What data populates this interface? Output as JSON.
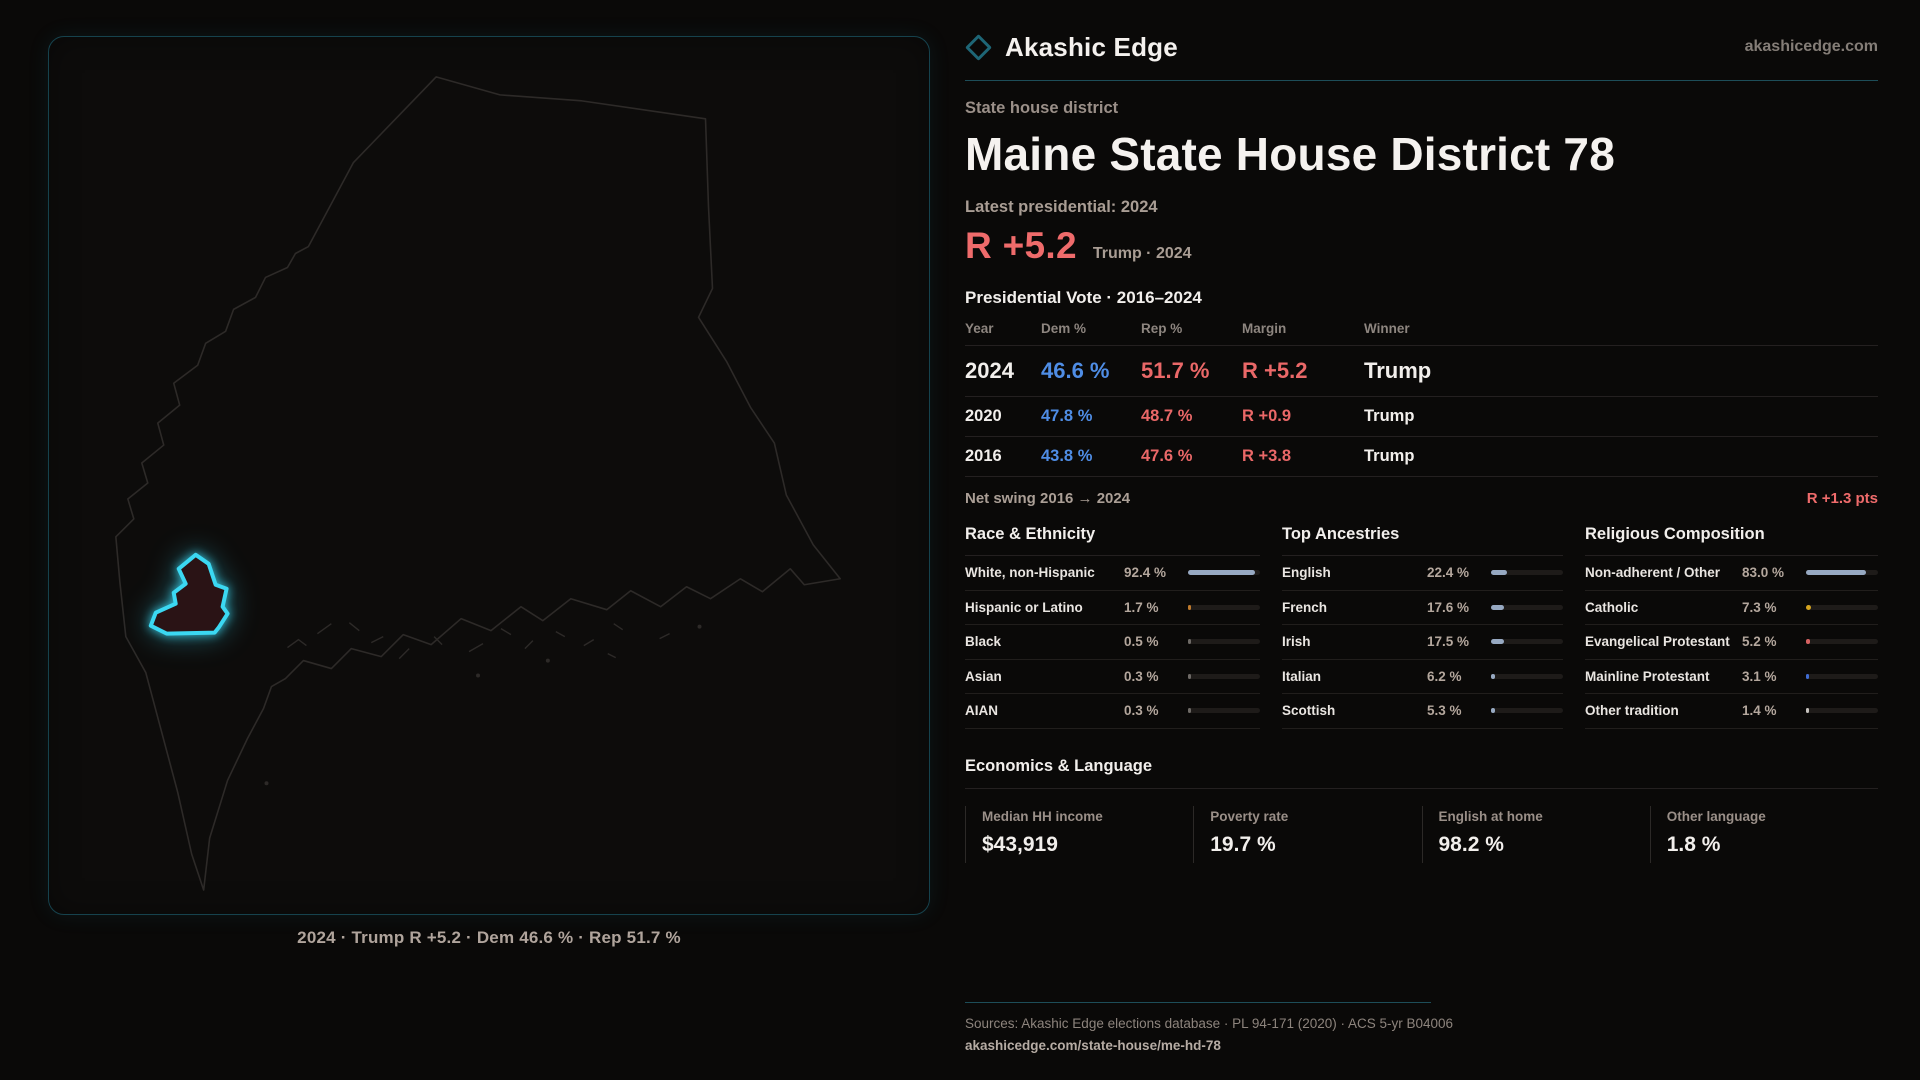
{
  "site": {
    "brand": "Akashic Edge",
    "domain": "akashicedge.com"
  },
  "icons": {
    "brand": "diamond-outline",
    "brand_color": "#1e6676"
  },
  "colors": {
    "accent_teal": "#1d4d58",
    "district_glow": "#3bd8f2",
    "rep_red": "#ea6868",
    "dem_blue": "#4f8de5",
    "bar_neutral": "#97a9c2",
    "bar_track": "#1e1b19"
  },
  "header": {
    "kicker": "State house district",
    "title": "Maine State House District 78",
    "latest_label": "Latest presidential: 2024",
    "headline_margin": "R +5.2",
    "headline_note": "Trump · 2024"
  },
  "vote_table": {
    "title": "Presidential Vote · 2016–2024",
    "columns": [
      "Year",
      "Dem %",
      "Rep %",
      "Margin",
      "Winner"
    ],
    "rows": [
      {
        "year": "2024",
        "dem": "46.6 %",
        "rep": "51.7 %",
        "margin": "R +5.2",
        "winner": "Trump",
        "emphasis": true
      },
      {
        "year": "2020",
        "dem": "47.8 %",
        "rep": "48.7 %",
        "margin": "R +0.9",
        "winner": "Trump",
        "emphasis": false
      },
      {
        "year": "2016",
        "dem": "43.8 %",
        "rep": "47.6 %",
        "margin": "R +3.8",
        "winner": "Trump",
        "emphasis": false
      }
    ]
  },
  "net_swing": {
    "label": "Net swing 2016 → 2024",
    "value": "R +1.3 pts"
  },
  "panels": [
    {
      "title": "Race & Ethnicity",
      "rows": [
        {
          "label": "White, non-Hispanic",
          "value": "92.4 %",
          "pct": 92.4,
          "color": "#97a9c2"
        },
        {
          "label": "Hispanic or Latino",
          "value": "1.7 %",
          "pct": 1.7,
          "color": "#bf7a2c"
        },
        {
          "label": "Black",
          "value": "0.5 %",
          "pct": 0.5,
          "color": "#6e6a66"
        },
        {
          "label": "Asian",
          "value": "0.3 %",
          "pct": 0.3,
          "color": "#6e6a66"
        },
        {
          "label": "AIAN",
          "value": "0.3 %",
          "pct": 0.3,
          "color": "#6e6a66"
        }
      ]
    },
    {
      "title": "Top Ancestries",
      "rows": [
        {
          "label": "English",
          "value": "22.4 %",
          "pct": 22.4,
          "color": "#97a9c2"
        },
        {
          "label": "French",
          "value": "17.6 %",
          "pct": 17.6,
          "color": "#97a9c2"
        },
        {
          "label": "Irish",
          "value": "17.5 %",
          "pct": 17.5,
          "color": "#97a9c2"
        },
        {
          "label": "Italian",
          "value": "6.2 %",
          "pct": 6.2,
          "color": "#97a9c2"
        },
        {
          "label": "Scottish",
          "value": "5.3 %",
          "pct": 5.3,
          "color": "#97a9c2"
        }
      ]
    },
    {
      "title": "Religious Composition",
      "rows": [
        {
          "label": "Non-adherent / Other",
          "value": "83.0 %",
          "pct": 83.0,
          "color": "#97a9c2"
        },
        {
          "label": "Catholic",
          "value": "7.3 %",
          "pct": 7.3,
          "color": "#d5a41f"
        },
        {
          "label": "Evangelical Protestant",
          "value": "5.2 %",
          "pct": 5.2,
          "color": "#d66161"
        },
        {
          "label": "Mainline Protestant",
          "value": "3.1 %",
          "pct": 3.1,
          "color": "#3f6cd3"
        },
        {
          "label": "Other tradition",
          "value": "1.4 %",
          "pct": 1.4,
          "color": "#c6c2be"
        }
      ]
    }
  ],
  "economics": {
    "title": "Economics & Language",
    "stats": [
      {
        "label": "Median HH income",
        "value": "$43,919"
      },
      {
        "label": "Poverty rate",
        "value": "19.7 %"
      },
      {
        "label": "English at home",
        "value": "98.2 %"
      },
      {
        "label": "Other language",
        "value": "1.8 %"
      }
    ]
  },
  "map": {
    "caption": "2024 · Trump R +5.2 · Dem 46.6 % · Rep 51.7 %"
  },
  "footer": {
    "sources": "Sources: Akashic Edge elections database · PL 94-171 (2020) · ACS 5-yr B04006",
    "url": "akashicedge.com/state-house/me-hd-78"
  }
}
